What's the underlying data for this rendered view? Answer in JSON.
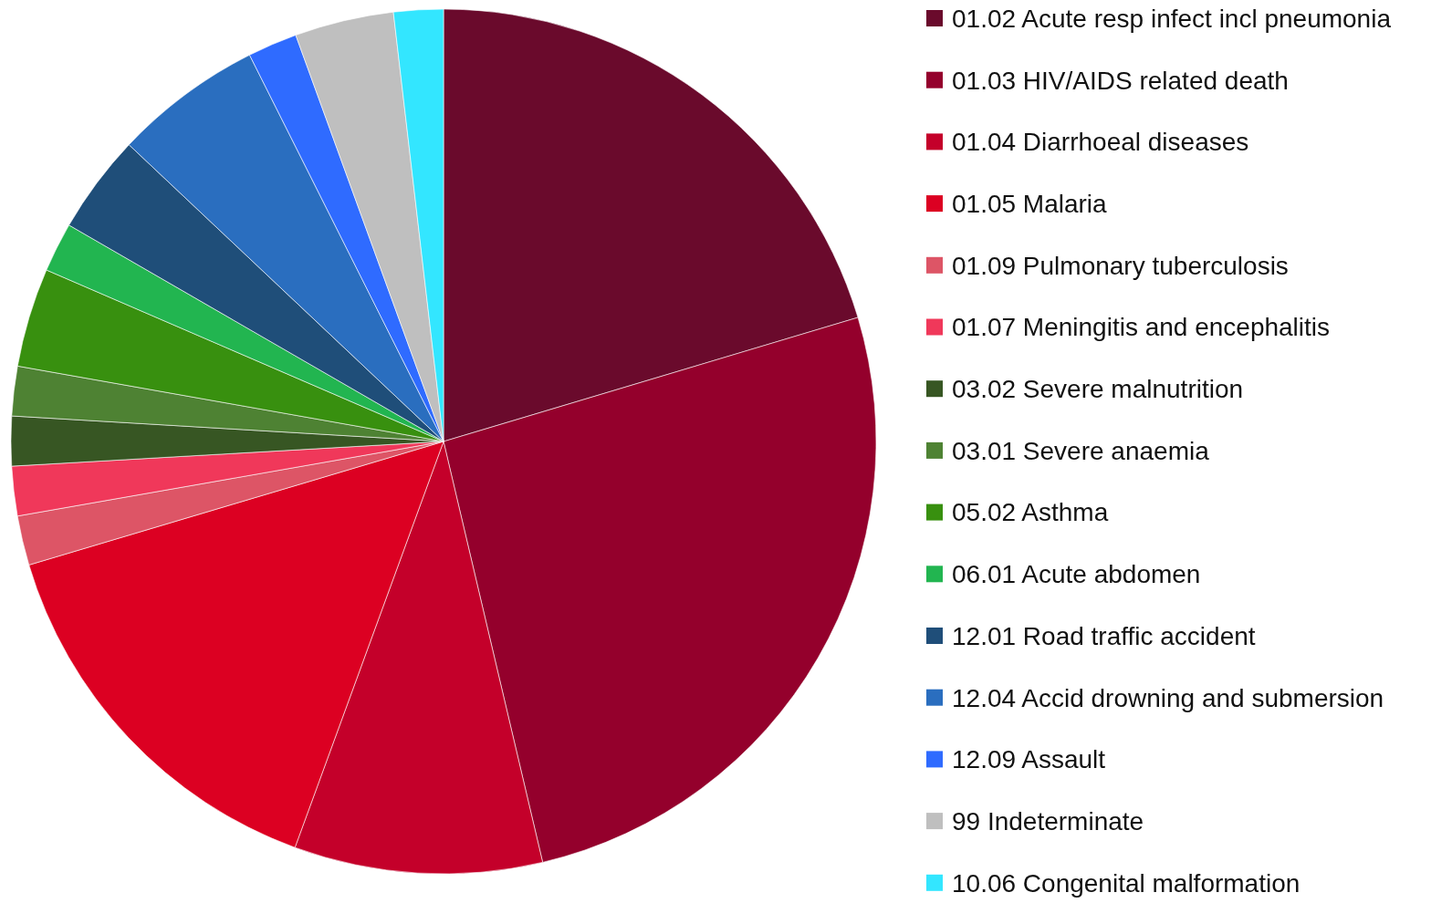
{
  "chart_data": {
    "type": "pie",
    "legend": "right",
    "categories": [
      "01.02 Acute resp infect incl pneumonia",
      "01.03 HIV/AIDS related death",
      "01.04 Diarrhoeal diseases",
      "01.05 Malaria",
      "01.09 Pulmonary tuberculosis",
      "01.07 Meningitis and encephalitis",
      "03.02 Severe malnutrition",
      "03.01 Severe anaemia",
      "05.02 Asthma",
      "06.01 Acute abdomen",
      "12.01 Road traffic accident",
      "12.04 Accid drowning and submersion",
      "12.09 Assault",
      "99 Indeterminate",
      "10.06 Congenital malformation"
    ],
    "values": [
      20.37,
      25.95,
      9.26,
      14.81,
      1.85,
      1.85,
      1.85,
      1.85,
      3.7,
      1.85,
      3.7,
      5.56,
      1.85,
      3.7,
      1.85
    ],
    "colors": [
      "#6a0a2c",
      "#94002c",
      "#c4002a",
      "#dc0022",
      "#dd5566",
      "#f0385a",
      "#375623",
      "#4e8233",
      "#38900f",
      "#22b550",
      "#1f4e79",
      "#2a6ebf",
      "#2f6bff",
      "#bfbfbf",
      "#33e6ff"
    ]
  }
}
